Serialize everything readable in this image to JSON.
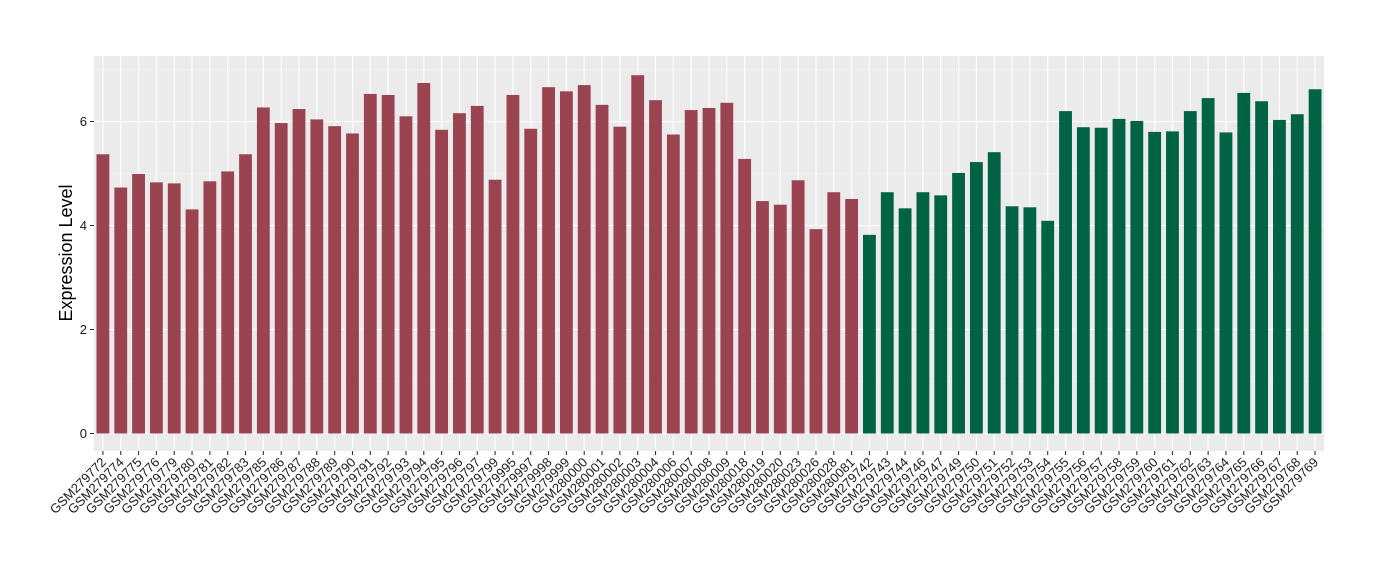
{
  "chart_data": {
    "type": "bar",
    "title": "",
    "xlabel": "",
    "ylabel": "Expression Level",
    "ylim": [
      0,
      7.2
    ],
    "yticks": [
      0,
      2,
      4,
      6
    ],
    "grid": true,
    "panel_background": "#EBEBEB",
    "colors": {
      "group_a": "#9B4451",
      "group_b": "#006444"
    },
    "categories": [
      "GSM279772",
      "GSM279774",
      "GSM279775",
      "GSM279776",
      "GSM279779",
      "GSM279780",
      "GSM279781",
      "GSM279782",
      "GSM279783",
      "GSM279785",
      "GSM279786",
      "GSM279787",
      "GSM279788",
      "GSM279789",
      "GSM279790",
      "GSM279791",
      "GSM279792",
      "GSM279793",
      "GSM279794",
      "GSM279795",
      "GSM279796",
      "GSM279797",
      "GSM279799",
      "GSM279995",
      "GSM279997",
      "GSM279998",
      "GSM279999",
      "GSM280000",
      "GSM280001",
      "GSM280002",
      "GSM280003",
      "GSM280004",
      "GSM280006",
      "GSM280007",
      "GSM280008",
      "GSM280009",
      "GSM280018",
      "GSM280019",
      "GSM280020",
      "GSM280023",
      "GSM280026",
      "GSM280028",
      "GSM280081",
      "GSM279742",
      "GSM279743",
      "GSM279744",
      "GSM279746",
      "GSM279747",
      "GSM279749",
      "GSM279750",
      "GSM279751",
      "GSM279752",
      "GSM279753",
      "GSM279754",
      "GSM279755",
      "GSM279756",
      "GSM279757",
      "GSM279758",
      "GSM279759",
      "GSM279760",
      "GSM279761",
      "GSM279762",
      "GSM279763",
      "GSM279764",
      "GSM279765",
      "GSM279766",
      "GSM279767",
      "GSM279768",
      "GSM279769"
    ],
    "values": [
      5.37,
      4.73,
      4.99,
      4.83,
      4.81,
      4.31,
      4.85,
      5.04,
      5.37,
      6.27,
      5.97,
      6.24,
      6.04,
      5.91,
      5.77,
      6.53,
      6.51,
      6.1,
      6.74,
      5.84,
      6.16,
      6.3,
      4.88,
      6.51,
      5.86,
      6.66,
      6.58,
      6.7,
      6.32,
      5.9,
      6.89,
      6.41,
      5.75,
      6.22,
      6.26,
      6.36,
      5.28,
      4.47,
      4.4,
      4.87,
      3.93,
      4.64,
      4.51,
      3.82,
      4.64,
      4.33,
      4.64,
      4.58,
      5.01,
      5.22,
      5.41,
      4.37,
      4.35,
      4.09,
      6.2,
      5.89,
      5.88,
      6.05,
      6.01,
      5.8,
      5.81,
      6.2,
      6.45,
      5.79,
      6.55,
      6.39,
      6.03,
      6.14,
      6.62
    ],
    "groups": [
      "a",
      "a",
      "a",
      "a",
      "a",
      "a",
      "a",
      "a",
      "a",
      "a",
      "a",
      "a",
      "a",
      "a",
      "a",
      "a",
      "a",
      "a",
      "a",
      "a",
      "a",
      "a",
      "a",
      "a",
      "a",
      "a",
      "a",
      "a",
      "a",
      "a",
      "a",
      "a",
      "a",
      "a",
      "a",
      "a",
      "a",
      "a",
      "a",
      "a",
      "a",
      "a",
      "a",
      "b",
      "b",
      "b",
      "b",
      "b",
      "b",
      "b",
      "b",
      "b",
      "b",
      "b",
      "b",
      "b",
      "b",
      "b",
      "b",
      "b",
      "b",
      "b",
      "b",
      "b",
      "b",
      "b",
      "b",
      "b",
      "b"
    ]
  }
}
